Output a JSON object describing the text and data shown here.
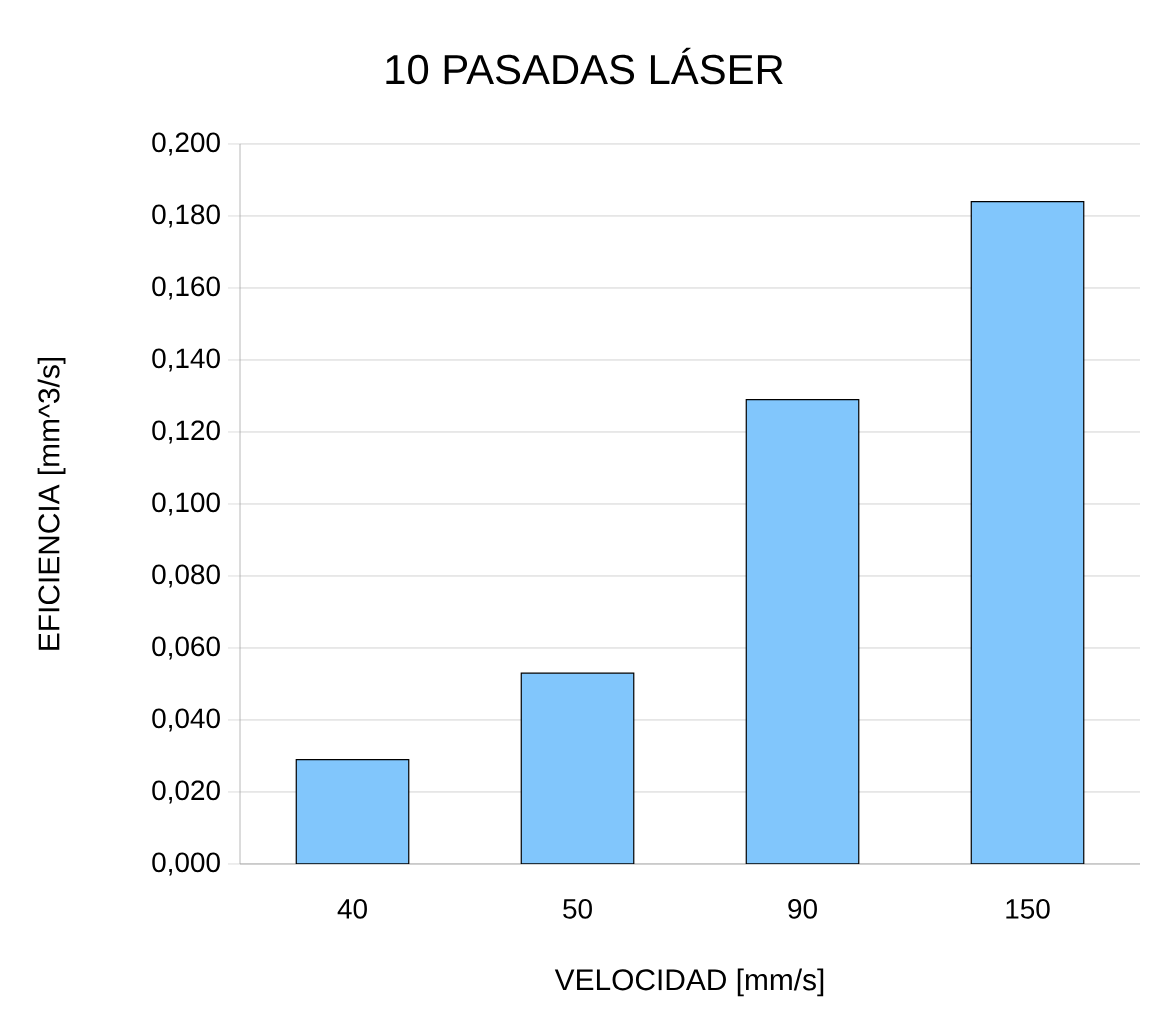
{
  "chart_data": {
    "type": "bar",
    "title": "10 PASADAS LÁSER",
    "xlabel": "VELOCIDAD [mm/s]",
    "ylabel": "EFICIENCIA [mm^3/s]",
    "categories": [
      "40",
      "50",
      "90",
      "150"
    ],
    "values": [
      0.029,
      0.053,
      0.129,
      0.184
    ],
    "color": "#81c6fc",
    "ylim": [
      0,
      0.2
    ],
    "yticks": [
      {
        "value": 0,
        "label": "0,000"
      },
      {
        "value": 0.02,
        "label": "0,020"
      },
      {
        "value": 0.04,
        "label": "0,040"
      },
      {
        "value": 0.06,
        "label": "0,060"
      },
      {
        "value": 0.08,
        "label": "0,080"
      },
      {
        "value": 0.1,
        "label": "0,100"
      },
      {
        "value": 0.12,
        "label": "0,120"
      },
      {
        "value": 0.14,
        "label": "0,140"
      },
      {
        "value": 0.16,
        "label": "0,160"
      },
      {
        "value": 0.18,
        "label": "0,180"
      },
      {
        "value": 0.2,
        "label": "0,200"
      }
    ],
    "grid": "y"
  }
}
